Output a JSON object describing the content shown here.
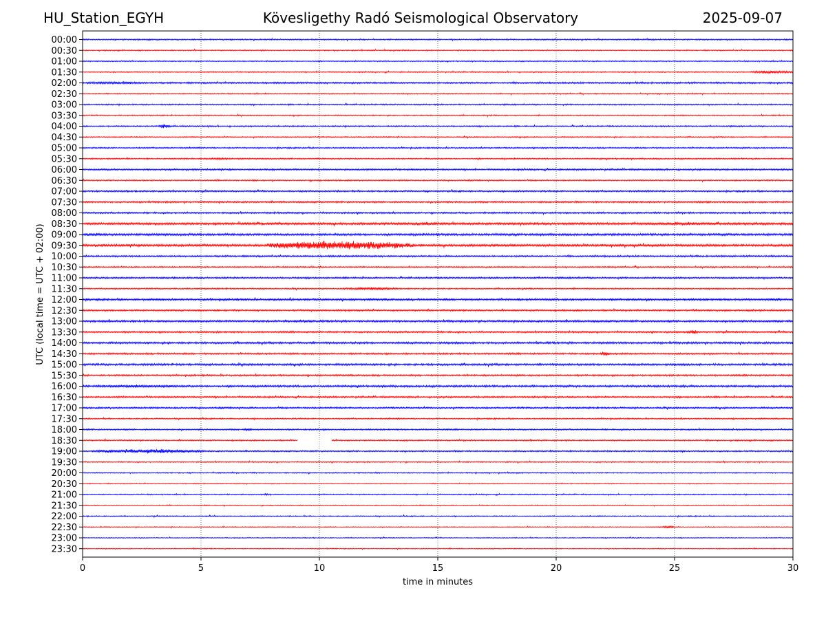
{
  "header": {
    "station": "HU_Station_EGYH",
    "title": "Kövesligethy Radó Seismological Observatory",
    "date": "2025-09-07"
  },
  "chart_data": {
    "type": "line",
    "title": "Kövesligethy Radó Seismological Observatory",
    "xlabel": "time in minutes",
    "ylabel": "UTC (local time = UTC + 02:00)",
    "xlim": [
      0,
      30
    ],
    "xticks": [
      0,
      5,
      10,
      15,
      20,
      25,
      30
    ],
    "grid": "vertical dotted lines at x ticks",
    "colors": [
      "#0000ff",
      "#ff0000"
    ],
    "rows": [
      "00:00",
      "00:30",
      "01:00",
      "01:30",
      "02:00",
      "02:30",
      "03:00",
      "03:30",
      "04:00",
      "04:30",
      "05:00",
      "05:30",
      "06:00",
      "06:30",
      "07:00",
      "07:30",
      "08:00",
      "08:30",
      "09:00",
      "09:30",
      "10:00",
      "10:30",
      "11:00",
      "11:30",
      "12:00",
      "12:30",
      "13:00",
      "13:30",
      "14:00",
      "14:30",
      "15:00",
      "15:30",
      "16:00",
      "16:30",
      "17:00",
      "17:30",
      "18:00",
      "18:30",
      "19:00",
      "19:30",
      "20:00",
      "20:30",
      "21:00",
      "21:30",
      "22:00",
      "22:30",
      "23:00",
      "23:30"
    ],
    "base_noise": [
      1.2,
      1.0,
      1.0,
      1.0,
      1.5,
      1.0,
      1.2,
      1.0,
      1.2,
      1.0,
      1.2,
      1.2,
      1.5,
      1.2,
      1.5,
      1.5,
      1.5,
      2.2,
      2.0,
      2.2,
      1.5,
      1.2,
      1.5,
      1.2,
      1.8,
      1.5,
      1.8,
      1.5,
      1.8,
      1.5,
      1.8,
      1.5,
      1.8,
      1.5,
      1.5,
      1.2,
      1.3,
      1.2,
      1.3,
      1.0,
      1.0,
      0.8,
      1.0,
      0.8,
      1.0,
      0.8,
      0.8,
      0.8
    ],
    "events": [
      {
        "row": "01:30",
        "start": 28.2,
        "end": 30.0,
        "amp": 3
      },
      {
        "row": "02:00",
        "start": 0.0,
        "end": 2.7,
        "amp": 3
      },
      {
        "row": "04:00",
        "start": 3.2,
        "end": 3.7,
        "amp": 4
      },
      {
        "row": "05:30",
        "start": 5.0,
        "end": 6.5,
        "amp": 2
      },
      {
        "row": "08:30",
        "start": 13.0,
        "end": 16.0,
        "amp": 3
      },
      {
        "row": "08:30",
        "start": 23.0,
        "end": 28.0,
        "amp": 3
      },
      {
        "row": "09:00",
        "start": 0.0,
        "end": 1.0,
        "amp": 3
      },
      {
        "row": "09:30",
        "start": 7.8,
        "end": 14.0,
        "amp": 8
      },
      {
        "row": "11:30",
        "start": 11.0,
        "end": 13.5,
        "amp": 3
      },
      {
        "row": "13:00",
        "start": 8.8,
        "end": 9.6,
        "amp": 3
      },
      {
        "row": "13:30",
        "start": 25.5,
        "end": 26.0,
        "amp": 4
      },
      {
        "row": "14:30",
        "start": 21.8,
        "end": 22.3,
        "amp": 4
      },
      {
        "row": "16:00",
        "start": 0.0,
        "end": 4.5,
        "amp": 3
      },
      {
        "row": "18:00",
        "start": 6.8,
        "end": 7.2,
        "amp": 3
      },
      {
        "row": "19:00",
        "start": 0.5,
        "end": 5.2,
        "amp": 4
      },
      {
        "row": "21:00",
        "start": 7.5,
        "end": 7.9,
        "amp": 2
      },
      {
        "row": "22:30",
        "start": 24.5,
        "end": 25.0,
        "amp": 3
      }
    ],
    "gaps": [
      {
        "row": "18:30",
        "start": 9.1,
        "end": 10.5
      }
    ]
  }
}
